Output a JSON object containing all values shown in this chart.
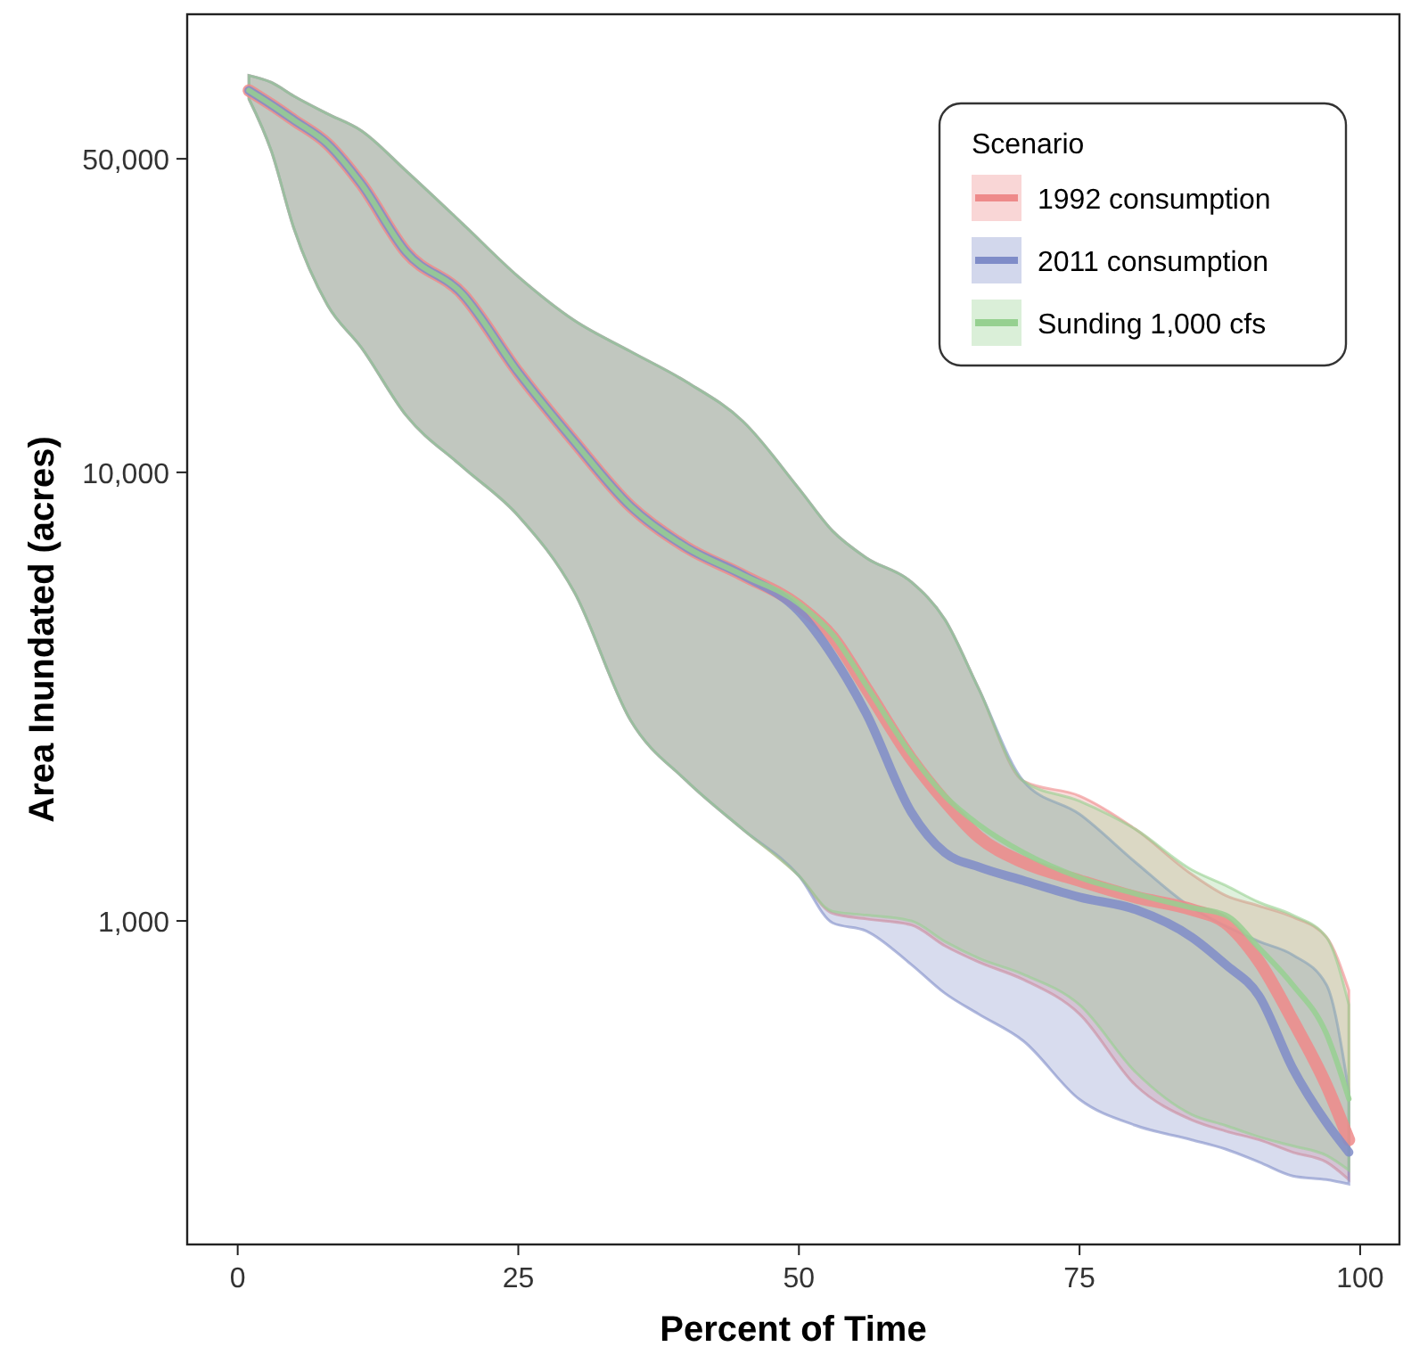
{
  "chart_data": {
    "type": "line",
    "xlabel": "Percent of Time",
    "ylabel": "Area Inundated (acres)",
    "legend_title": "Scenario",
    "legend": "top right",
    "log": true,
    "grid": false,
    "x": [
      1,
      3,
      5,
      8,
      11,
      15,
      20,
      25,
      30,
      35,
      40,
      45,
      50,
      53,
      56,
      60,
      63,
      66,
      70,
      75,
      80,
      85,
      88,
      91,
      94,
      97,
      99
    ],
    "xlim": [
      -4.5,
      103.5
    ],
    "xticks": [
      0,
      25,
      50,
      75,
      100
    ],
    "ylim": [
      190,
      105000
    ],
    "yticks": [
      {
        "value": 1000,
        "label": "1,000"
      },
      {
        "value": 10000,
        "label": "10,000"
      },
      {
        "value": 50000,
        "label": "50,000"
      }
    ],
    "series": [
      {
        "name": "1992 consumption",
        "color": "#ee8a8a",
        "values": [
          71000,
          66000,
          61000,
          54000,
          44000,
          31000,
          25000,
          16700,
          11700,
          8400,
          6800,
          5900,
          5040,
          4300,
          3300,
          2300,
          1850,
          1540,
          1350,
          1230,
          1130,
          1060,
          990,
          811,
          600,
          430,
          325
        ],
        "upper": [
          76700,
          74000,
          69000,
          63000,
          57800,
          47000,
          35900,
          27300,
          21800,
          18600,
          15900,
          13000,
          9200,
          7400,
          6450,
          5700,
          4700,
          3300,
          2050,
          1900,
          1600,
          1270,
          1140,
          1080,
          1020,
          920,
          700
        ],
        "lower": [
          68000,
          52000,
          35000,
          23600,
          19000,
          13400,
          10300,
          8000,
          5400,
          2800,
          2050,
          1600,
          1260,
          1040,
          1010,
          980,
          880,
          810,
          740,
          620,
          430,
          360,
          340,
          325,
          305,
          290,
          265
        ]
      },
      {
        "name": "2011 consumption",
        "color": "#7f8cc8",
        "values": [
          71000,
          66000,
          61000,
          54000,
          44000,
          31000,
          25000,
          16700,
          11700,
          8400,
          6800,
          5900,
          4900,
          3900,
          2900,
          1750,
          1420,
          1320,
          1230,
          1130,
          1060,
          920,
          800,
          680,
          469,
          355,
          305
        ],
        "upper": [
          76700,
          74000,
          69000,
          63000,
          57800,
          47000,
          35900,
          27300,
          21800,
          18600,
          15900,
          13000,
          9200,
          7400,
          6450,
          5700,
          4700,
          3300,
          2050,
          1730,
          1350,
          1070,
          975,
          900,
          840,
          720,
          416
        ],
        "lower": [
          68000,
          52000,
          35000,
          23600,
          19000,
          13400,
          10300,
          8000,
          5400,
          2800,
          2050,
          1600,
          1260,
          990,
          950,
          800,
          690,
          620,
          540,
          400,
          350,
          325,
          310,
          290,
          270,
          265,
          259
        ]
      },
      {
        "name": "Sunding 1,000 cfs",
        "color": "#96d090",
        "values": [
          71000,
          66000,
          61000,
          54000,
          44000,
          31000,
          25000,
          16700,
          11700,
          8400,
          6800,
          5900,
          5100,
          4350,
          3350,
          2350,
          1900,
          1640,
          1420,
          1250,
          1150,
          1070,
          1030,
          870,
          720,
          560,
          401
        ],
        "upper": [
          76700,
          74000,
          69000,
          63000,
          57800,
          47000,
          35900,
          27300,
          21800,
          18600,
          15900,
          13000,
          9200,
          7400,
          6450,
          5700,
          4700,
          3300,
          2050,
          1850,
          1600,
          1300,
          1200,
          1100,
          1030,
          920,
          650
        ],
        "lower": [
          68000,
          52000,
          35000,
          23600,
          19000,
          13400,
          10300,
          8000,
          5400,
          2800,
          2050,
          1600,
          1260,
          1050,
          1030,
          1000,
          900,
          826,
          760,
          650,
          460,
          370,
          350,
          330,
          315,
          300,
          278
        ]
      }
    ]
  }
}
